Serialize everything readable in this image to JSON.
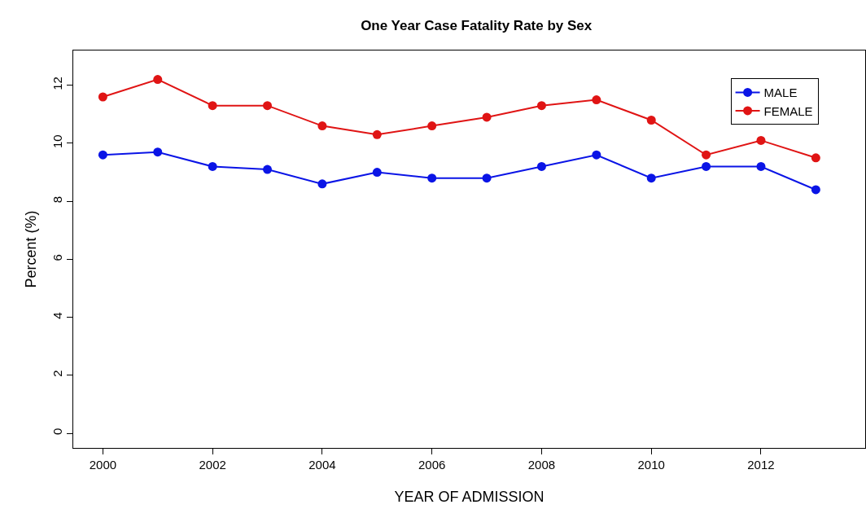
{
  "chart_data": {
    "type": "line",
    "title": "One Year Case Fatality Rate by Sex",
    "xlabel": "YEAR OF ADMISSION",
    "ylabel": "Percent (%)",
    "x": [
      2000,
      2001,
      2002,
      2003,
      2004,
      2005,
      2006,
      2007,
      2008,
      2009,
      2010,
      2011,
      2012,
      2013
    ],
    "series": [
      {
        "name": "MALE",
        "color": "#0a14e6",
        "values": [
          9.6,
          9.7,
          9.2,
          9.1,
          8.6,
          9.0,
          8.8,
          8.8,
          9.2,
          9.6,
          8.8,
          9.2,
          9.2,
          8.4
        ]
      },
      {
        "name": "FEMALE",
        "color": "#e01414",
        "values": [
          11.6,
          12.2,
          11.3,
          11.3,
          10.6,
          10.3,
          10.6,
          10.9,
          11.3,
          11.5,
          10.8,
          9.6,
          10.1,
          9.5
        ]
      }
    ],
    "xlim": [
      1999.46,
      2013.9
    ],
    "ylim": [
      -0.5,
      13.2
    ],
    "xticks": [
      2000,
      2002,
      2004,
      2006,
      2008,
      2010,
      2012
    ],
    "yticks": [
      0,
      2,
      4,
      6,
      8,
      10,
      12
    ],
    "grid": false,
    "legend": "top right",
    "marker": "circle",
    "line_style": "solid"
  }
}
